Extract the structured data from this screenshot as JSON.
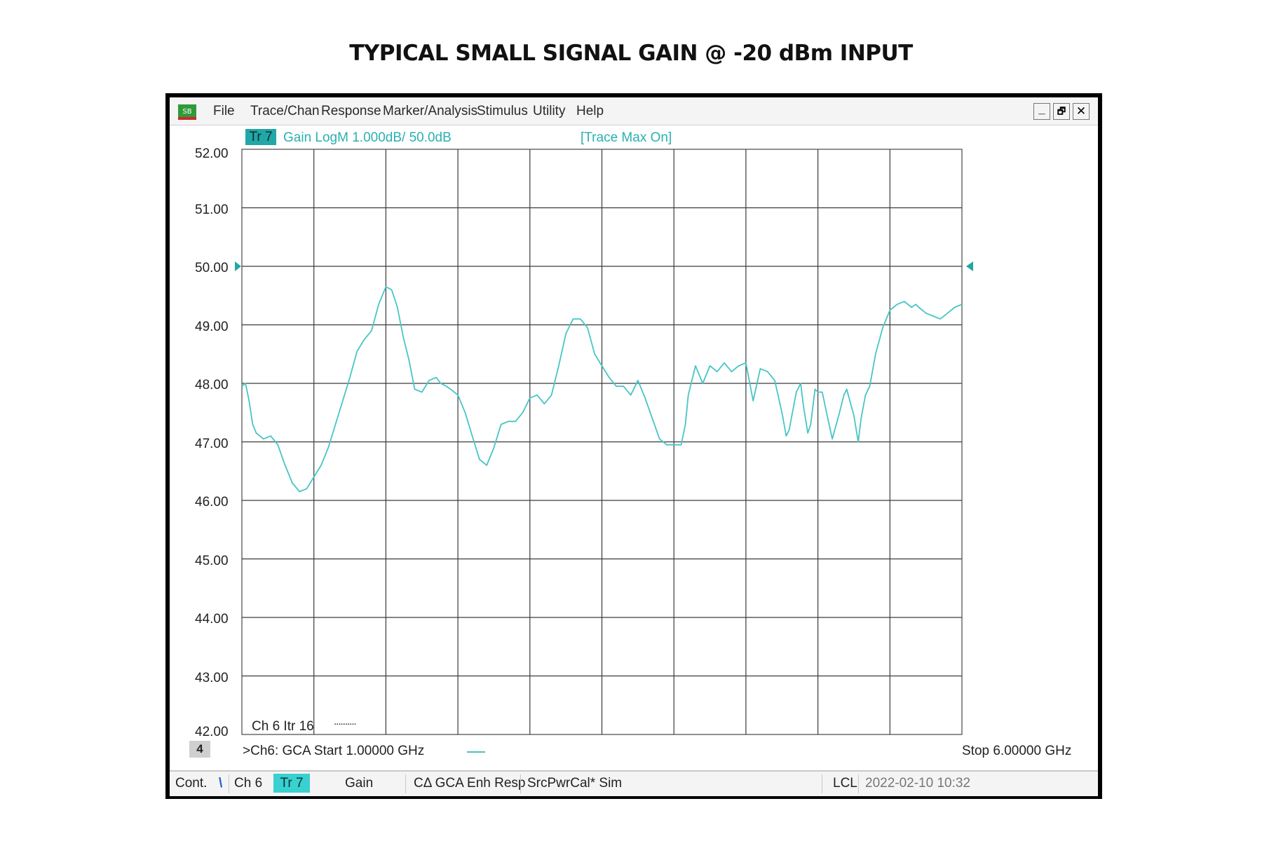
{
  "page_title": "TYPICAL SMALL SIGNAL GAIN @ -20 dBm INPUT",
  "menu": [
    "File",
    "Trace/Chan",
    "Response",
    "Marker/Analysis",
    "Stimulus",
    "Utility",
    "Help"
  ],
  "window_buttons": {
    "minimize": "_",
    "restore": "🗗",
    "close": "✕"
  },
  "trace": {
    "badge": "Tr 7",
    "info": "Gain LogM 1.000dB/  50.0dB",
    "max_hold": "[Trace Max On]"
  },
  "channel_info": "Ch 6  Itr 16",
  "channel_dots": "..........",
  "corner_number": "4",
  "start_label": ">Ch6: GCA  Start   1.00000 GHz",
  "stop_label": "Stop  6.00000 GHz",
  "status": {
    "mode": "Cont.",
    "mode_flag": "\\",
    "channel": "Ch 6",
    "trace": "Tr 7",
    "measurement": "Gain",
    "cal": "CΔ GCA Enh Resp",
    "src": "SrcPwrCal* Sim",
    "lcl": "LCL",
    "datetime": "2022-02-10 10:32"
  },
  "colors": {
    "trace": "#48c5c5",
    "grid": "#3a3a3a",
    "badge": "#22a6a6"
  },
  "chart_data": {
    "type": "line",
    "title": "TYPICAL SMALL SIGNAL GAIN @ -20 dBm INPUT",
    "xlabel": "",
    "ylabel": "",
    "x_unit": "GHz",
    "xlim": [
      1.0,
      6.0
    ],
    "ylim": [
      42.0,
      52.0
    ],
    "y_ticks": [
      "52.00",
      "51.00",
      "50.00",
      "49.00",
      "48.00",
      "47.00",
      "46.00",
      "45.00",
      "44.00",
      "43.00",
      "42.00"
    ],
    "reference_level": 50.0,
    "grid": true,
    "series": [
      {
        "x": [
          1.0,
          1.025,
          1.05,
          1.075,
          1.1,
          1.15,
          1.2,
          1.25,
          1.3,
          1.35,
          1.4,
          1.45,
          1.5,
          1.55,
          1.6,
          1.65,
          1.7,
          1.75,
          1.8,
          1.85,
          1.9,
          1.95,
          2.0,
          2.04,
          2.08,
          2.12,
          2.16,
          2.2,
          2.25,
          2.3,
          2.35,
          2.38,
          2.42,
          2.45,
          2.5,
          2.55,
          2.6,
          2.65,
          2.7,
          2.75,
          2.8,
          2.85,
          2.9,
          2.95,
          3.0,
          3.05,
          3.1,
          3.15,
          3.2,
          3.25,
          3.3,
          3.35,
          3.4,
          3.45,
          3.5,
          3.55,
          3.6,
          3.65,
          3.7,
          3.75,
          3.8,
          3.85,
          3.9,
          3.95,
          4.0,
          4.02,
          4.05,
          4.08,
          4.1,
          4.15,
          4.2,
          4.25,
          4.3,
          4.35,
          4.4,
          4.45,
          4.5,
          4.55,
          4.6,
          4.65,
          4.7,
          4.75,
          4.78,
          4.8,
          4.85,
          4.88,
          4.9,
          4.93,
          4.95,
          4.98,
          5.0,
          5.03,
          5.06,
          5.1,
          5.15,
          5.18,
          5.2,
          5.25,
          5.28,
          5.3,
          5.33,
          5.36,
          5.4,
          5.45,
          5.5,
          5.55,
          5.6,
          5.65,
          5.68,
          5.7,
          5.75,
          5.8,
          5.85,
          5.9,
          5.95,
          6.0
        ],
        "values": [
          47.95,
          48.0,
          47.7,
          47.3,
          47.15,
          47.05,
          47.1,
          46.95,
          46.6,
          46.3,
          46.15,
          46.2,
          46.4,
          46.6,
          46.9,
          47.3,
          47.7,
          48.1,
          48.55,
          48.75,
          48.9,
          49.35,
          49.65,
          49.6,
          49.3,
          48.8,
          48.4,
          47.9,
          47.85,
          48.05,
          48.1,
          48.0,
          47.95,
          47.9,
          47.8,
          47.5,
          47.1,
          46.7,
          46.6,
          46.9,
          47.3,
          47.35,
          47.35,
          47.5,
          47.75,
          47.8,
          47.65,
          47.8,
          48.3,
          48.85,
          49.1,
          49.1,
          48.95,
          48.5,
          48.3,
          48.1,
          47.95,
          47.95,
          47.8,
          48.05,
          47.75,
          47.4,
          47.05,
          46.95,
          46.95,
          46.95,
          46.95,
          47.3,
          47.8,
          48.3,
          48.0,
          48.3,
          48.2,
          48.35,
          48.2,
          48.3,
          48.35,
          47.7,
          48.25,
          48.2,
          48.05,
          47.5,
          47.1,
          47.2,
          47.85,
          48.0,
          47.6,
          47.15,
          47.3,
          47.9,
          47.85,
          47.85,
          47.5,
          47.05,
          47.5,
          47.8,
          47.9,
          47.45,
          47.0,
          47.4,
          47.8,
          47.95,
          48.5,
          48.95,
          49.25,
          49.35,
          49.4,
          49.3,
          49.35,
          49.3,
          49.2,
          49.15,
          49.1,
          49.2,
          49.3,
          49.35
        ]
      }
    ]
  }
}
